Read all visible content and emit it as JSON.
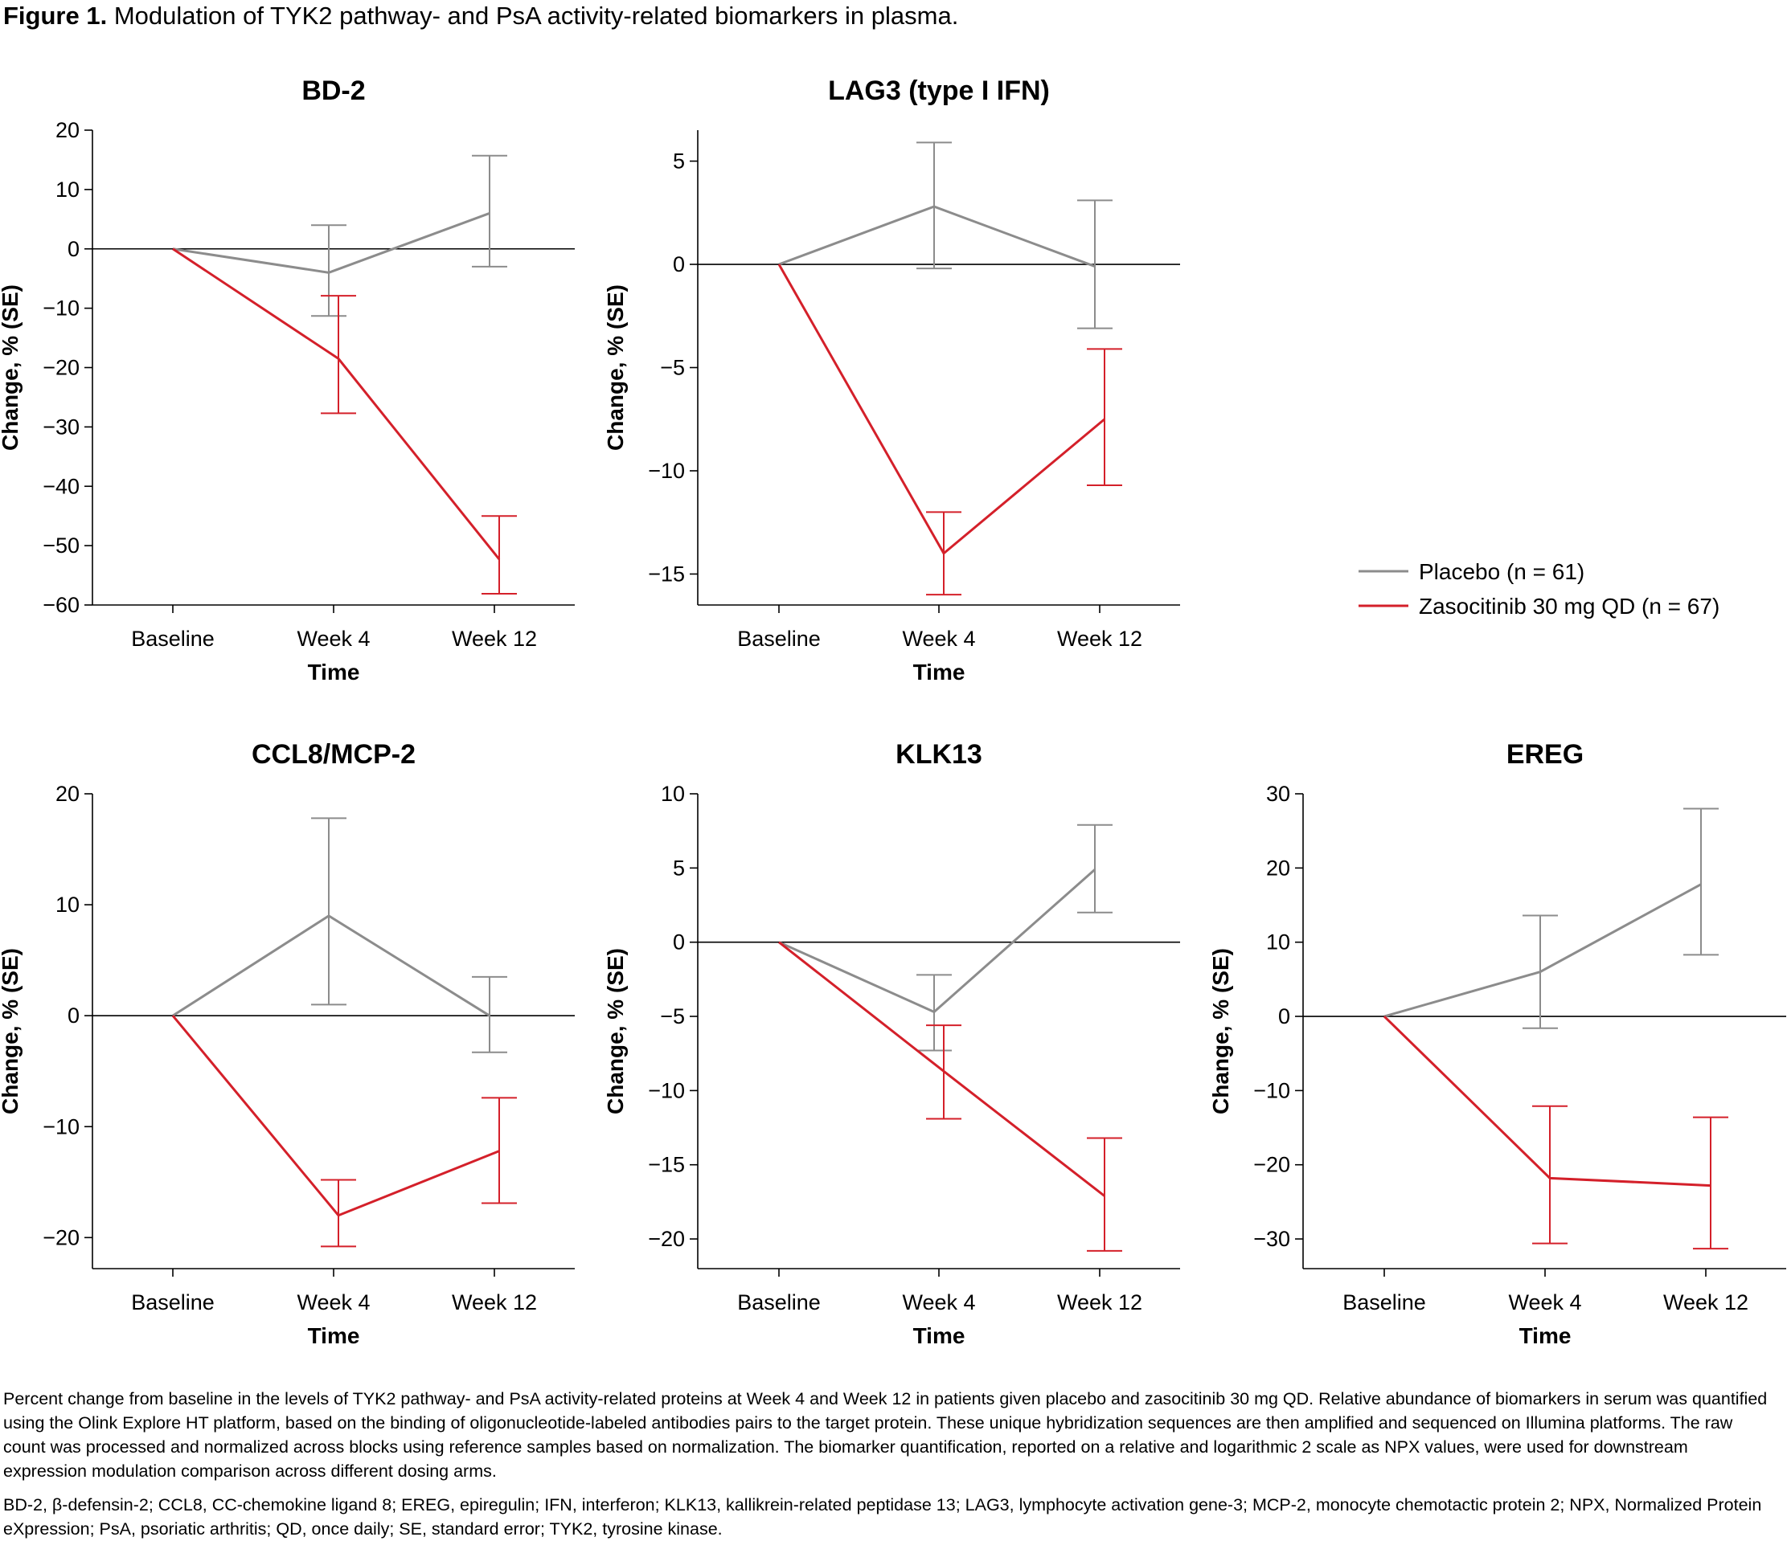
{
  "figure": {
    "label": "Figure 1.",
    "title": "Modulation of TYK2 pathway- and PsA activity-related biomarkers in plasma."
  },
  "legend": {
    "placement": "right, upper row",
    "entries": [
      {
        "name": "Placebo (n = 61)",
        "color": "#8c8c8c"
      },
      {
        "name": "Zasocitinib 30 mg QD (n = 67)",
        "color": "#d4202a"
      }
    ]
  },
  "colors": {
    "placebo": "#8c8c8c",
    "zasocitinib": "#d4202a",
    "axis": "#000000"
  },
  "chart_data": [
    {
      "type": "line",
      "title": "BD-2",
      "xlabel": "Time",
      "ylabel": "Change, % (SE)",
      "categories": [
        "Baseline",
        "Week 4",
        "Week 12"
      ],
      "ylim": [
        -60,
        20
      ],
      "yticks": [
        20,
        10,
        0,
        -10,
        -20,
        -30,
        -40,
        -50,
        -60
      ],
      "ytick_labels": [
        "20",
        "10",
        "0",
        "−10",
        "−20",
        "−30",
        "−40",
        "−50",
        "−60"
      ],
      "grid": false,
      "series": [
        {
          "name": "Placebo (n = 61)",
          "values": [
            0,
            -4,
            6
          ],
          "upper": [
            0,
            4,
            15.7
          ],
          "lower": [
            0,
            -11.3,
            -3
          ]
        },
        {
          "name": "Zasocitinib 30 mg QD (n = 67)",
          "values": [
            0,
            -18.5,
            -52.3
          ],
          "upper": [
            0,
            -7.9,
            -45
          ],
          "lower": [
            0,
            -27.7,
            -58.1
          ]
        }
      ]
    },
    {
      "type": "line",
      "title": "LAG3 (type I IFN)",
      "xlabel": "Time",
      "ylabel": "Change, % (SE)",
      "categories": [
        "Baseline",
        "Week 4",
        "Week 12"
      ],
      "ylim": [
        -16.5,
        6.5
      ],
      "yticks": [
        5,
        0,
        -5,
        -10,
        -15
      ],
      "ytick_labels": [
        "5",
        "0",
        "−5",
        "−10",
        "−15"
      ],
      "grid": false,
      "series": [
        {
          "name": "Placebo (n = 61)",
          "values": [
            0,
            2.8,
            -0.1
          ],
          "upper": [
            0,
            5.9,
            3.1
          ],
          "lower": [
            0,
            -0.2,
            -3.1
          ]
        },
        {
          "name": "Zasocitinib 30 mg QD (n = 67)",
          "values": [
            0,
            -14,
            -7.5
          ],
          "upper": [
            0,
            -12,
            -4.1
          ],
          "lower": [
            0,
            -16,
            -10.7
          ]
        }
      ]
    },
    {
      "type": "line",
      "title": "CCL8/MCP-2",
      "xlabel": "Time",
      "ylabel": "Change, % (SE)",
      "categories": [
        "Baseline",
        "Week 4",
        "Week 12"
      ],
      "ylim": [
        -22.8,
        20
      ],
      "yticks": [
        20,
        10,
        0,
        -10,
        -20
      ],
      "ytick_labels": [
        "20",
        "10",
        "0",
        "−10",
        "−20"
      ],
      "grid": false,
      "series": [
        {
          "name": "Placebo (n = 61)",
          "values": [
            0,
            9,
            0
          ],
          "upper": [
            0,
            17.8,
            3.5
          ],
          "lower": [
            0,
            1,
            -3.3
          ]
        },
        {
          "name": "Zasocitinib 30 mg QD (n = 67)",
          "values": [
            0,
            -18,
            -12.2
          ],
          "upper": [
            0,
            -14.8,
            -7.4
          ],
          "lower": [
            0,
            -20.8,
            -16.9
          ]
        }
      ]
    },
    {
      "type": "line",
      "title": "KLK13",
      "xlabel": "Time",
      "ylabel": "Change, % (SE)",
      "categories": [
        "Baseline",
        "Week 4",
        "Week 12"
      ],
      "ylim": [
        -22,
        10
      ],
      "yticks": [
        10,
        5,
        0,
        -5,
        -10,
        -15,
        -20
      ],
      "ytick_labels": [
        "10",
        "5",
        "0",
        "−5",
        "−10",
        "−15",
        "−20"
      ],
      "grid": false,
      "series": [
        {
          "name": "Placebo (n = 61)",
          "values": [
            0,
            -4.7,
            4.9
          ],
          "upper": [
            0,
            -2.2,
            7.9
          ],
          "lower": [
            0,
            -7.3,
            2
          ]
        },
        {
          "name": "Zasocitinib 30 mg QD (n = 67)",
          "values": [
            0,
            -8.7,
            -17.1
          ],
          "upper": [
            0,
            -5.6,
            -13.2
          ],
          "lower": [
            0,
            -11.9,
            -20.8
          ]
        }
      ]
    },
    {
      "type": "line",
      "title": "EREG",
      "xlabel": "Time",
      "ylabel": "Change, % (SE)",
      "categories": [
        "Baseline",
        "Week 4",
        "Week 12"
      ],
      "ylim": [
        -34,
        30
      ],
      "yticks": [
        30,
        20,
        10,
        0,
        -10,
        -20,
        -30
      ],
      "ytick_labels": [
        "30",
        "20",
        "10",
        "0",
        "−10",
        "−20",
        "−30"
      ],
      "grid": false,
      "series": [
        {
          "name": "Placebo (n = 61)",
          "values": [
            0,
            6,
            17.8
          ],
          "upper": [
            0,
            13.6,
            28
          ],
          "lower": [
            0,
            -1.6,
            8.3
          ]
        },
        {
          "name": "Zasocitinib 30 mg QD (n = 67)",
          "values": [
            0,
            -21.8,
            -22.8
          ],
          "upper": [
            0,
            -12.1,
            -13.6
          ],
          "lower": [
            0,
            -30.6,
            -31.3
          ]
        }
      ]
    }
  ],
  "caption": {
    "paragraph1": "Percent change from baseline in the levels of TYK2 pathway- and PsA activity-related proteins at Week 4 and Week 12 in patients given placebo and zasocitinib 30 mg QD. Relative abundance of biomarkers in serum was quantified using the Olink Explore HT platform, based on the binding of oligonucleotide-labeled antibodies pairs to the target protein. These unique hybridization sequences are then amplified and sequenced on Illumina platforms. The raw count was processed and normalized across blocks using reference samples based on normalization. The biomarker quantification, reported on a relative and logarithmic 2 scale as NPX values, were used for downstream expression modulation comparison across different dosing arms.",
    "paragraph2": "BD-2, β-defensin-2; CCL8, CC-chemokine ligand 8; EREG, epiregulin; IFN, interferon; KLK13, kallikrein-related peptidase 13; LAG3, lymphocyte activation gene-3; MCP-2, monocyte chemotactic protein 2; NPX, Normalized Protein eXpression; PsA, psoriatic arthritis; QD, once daily; SE, standard error; TYK2, tyrosine kinase."
  }
}
